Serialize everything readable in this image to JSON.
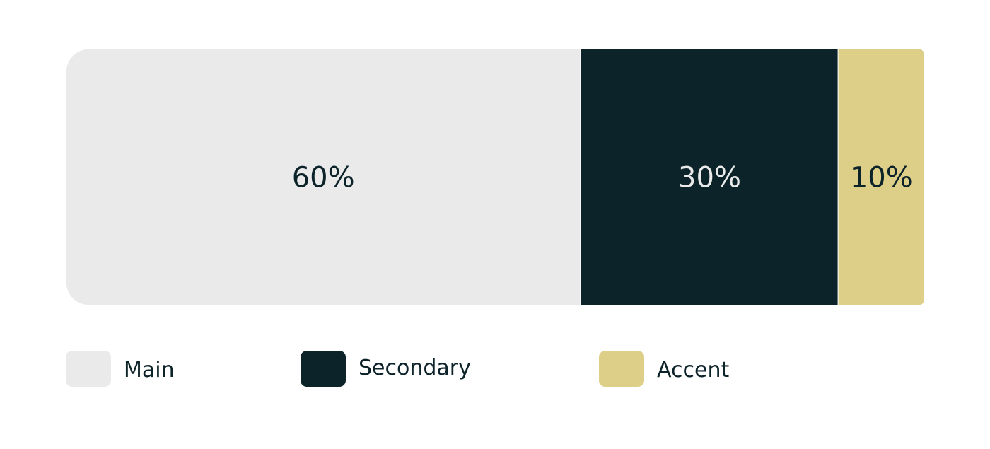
{
  "chart_data": {
    "type": "bar",
    "orientation": "horizontal-stacked",
    "unit": "%",
    "series": [
      {
        "name": "Main",
        "value": 60,
        "label": "60%",
        "color": "#EAEAEA",
        "text_color": "#0D232A"
      },
      {
        "name": "Secondary",
        "value": 30,
        "label": "30%",
        "color": "#0D232A",
        "text_color": "#EAEAEA"
      },
      {
        "name": "Accent",
        "value": 10,
        "label": "10%",
        "color": "#DDCF87",
        "text_color": "#0D232A"
      }
    ],
    "total": 100,
    "legend": "bottom",
    "grid": false
  }
}
